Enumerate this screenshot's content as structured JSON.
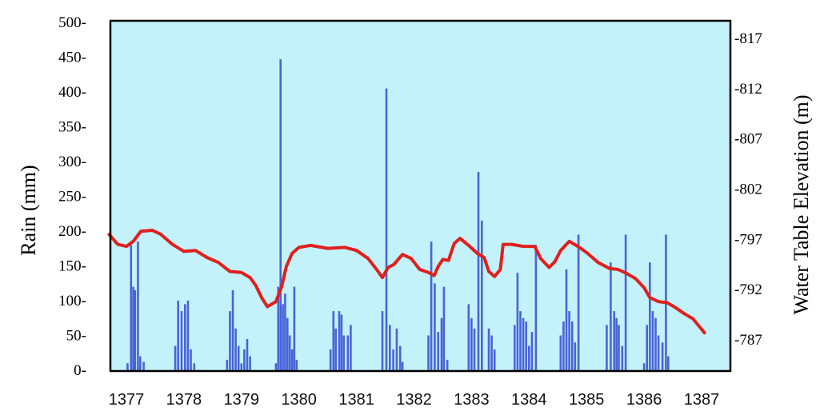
{
  "chart_data": {
    "type": "bar+line",
    "title": "",
    "ylabel_left": "Rain (mm)",
    "ylabel_right": "Water Table Elevation (m)",
    "left_ticks": [
      "500-",
      "450-",
      "400-",
      "350-",
      "300-",
      "250-",
      "200-",
      "150-",
      "100-",
      "50-",
      "0-"
    ],
    "right_ticks": [
      "-817",
      "-812",
      "-807",
      "-802",
      "-797",
      "-792",
      "-787"
    ],
    "x_ticks": [
      "1377",
      "1378",
      "1379",
      "1380",
      "1381",
      "1382",
      "1383",
      "1384",
      "1385",
      "1386",
      "1387"
    ],
    "ylim_left": [
      0,
      500
    ],
    "ylim_right": [
      785,
      819
    ],
    "xlim": [
      1376.7,
      1387.7
    ],
    "colors": {
      "plot_bg": "#c4f2fb",
      "bars": "#4a63d8",
      "line": "#e0201c"
    },
    "series": [
      {
        "kind": "bar",
        "axis": "left",
        "points": [
          [
            1377.02,
            10
          ],
          [
            1377.08,
            180
          ],
          [
            1377.12,
            120
          ],
          [
            1377.15,
            115
          ],
          [
            1377.2,
            185
          ],
          [
            1377.24,
            20
          ],
          [
            1377.3,
            12
          ],
          [
            1377.85,
            35
          ],
          [
            1377.9,
            100
          ],
          [
            1377.96,
            85
          ],
          [
            1378.02,
            95
          ],
          [
            1378.07,
            100
          ],
          [
            1378.12,
            30
          ],
          [
            1378.18,
            10
          ],
          [
            1378.75,
            15
          ],
          [
            1378.8,
            85
          ],
          [
            1378.85,
            115
          ],
          [
            1378.9,
            60
          ],
          [
            1378.95,
            35
          ],
          [
            1379.0,
            10
          ],
          [
            1379.05,
            30
          ],
          [
            1379.1,
            45
          ],
          [
            1379.15,
            20
          ],
          [
            1379.6,
            10
          ],
          [
            1379.64,
            120
          ],
          [
            1379.68,
            447
          ],
          [
            1379.72,
            95
          ],
          [
            1379.76,
            110
          ],
          [
            1379.8,
            75
          ],
          [
            1379.84,
            50
          ],
          [
            1379.88,
            30
          ],
          [
            1379.92,
            120
          ],
          [
            1379.96,
            15
          ],
          [
            1380.55,
            30
          ],
          [
            1380.6,
            85
          ],
          [
            1380.64,
            60
          ],
          [
            1380.7,
            85
          ],
          [
            1380.74,
            80
          ],
          [
            1380.78,
            50
          ],
          [
            1380.85,
            50
          ],
          [
            1380.9,
            65
          ],
          [
            1381.45,
            85
          ],
          [
            1381.52,
            405
          ],
          [
            1381.58,
            65
          ],
          [
            1381.64,
            30
          ],
          [
            1381.7,
            60
          ],
          [
            1381.76,
            35
          ],
          [
            1381.8,
            12
          ],
          [
            1382.25,
            50
          ],
          [
            1382.3,
            185
          ],
          [
            1382.36,
            125
          ],
          [
            1382.42,
            55
          ],
          [
            1382.48,
            75
          ],
          [
            1382.52,
            120
          ],
          [
            1382.58,
            15
          ],
          [
            1382.95,
            95
          ],
          [
            1383.0,
            75
          ],
          [
            1383.05,
            60
          ],
          [
            1383.12,
            285
          ],
          [
            1383.18,
            215
          ],
          [
            1383.3,
            60
          ],
          [
            1383.35,
            50
          ],
          [
            1383.4,
            30
          ],
          [
            1383.75,
            65
          ],
          [
            1383.8,
            140
          ],
          [
            1383.85,
            85
          ],
          [
            1383.9,
            75
          ],
          [
            1383.95,
            70
          ],
          [
            1384.0,
            35
          ],
          [
            1384.05,
            55
          ],
          [
            1384.12,
            180
          ],
          [
            1384.55,
            50
          ],
          [
            1384.6,
            70
          ],
          [
            1384.65,
            145
          ],
          [
            1384.7,
            85
          ],
          [
            1384.75,
            70
          ],
          [
            1384.8,
            40
          ],
          [
            1384.86,
            195
          ],
          [
            1385.35,
            65
          ],
          [
            1385.42,
            155
          ],
          [
            1385.48,
            85
          ],
          [
            1385.52,
            75
          ],
          [
            1385.56,
            65
          ],
          [
            1385.62,
            35
          ],
          [
            1385.68,
            195
          ],
          [
            1386.0,
            10
          ],
          [
            1386.05,
            65
          ],
          [
            1386.1,
            155
          ],
          [
            1386.15,
            85
          ],
          [
            1386.2,
            75
          ],
          [
            1386.25,
            50
          ],
          [
            1386.32,
            40
          ],
          [
            1386.38,
            195
          ],
          [
            1386.42,
            20
          ]
        ]
      },
      {
        "kind": "line",
        "axis": "right",
        "points": [
          [
            1376.7,
            797.5
          ],
          [
            1376.85,
            796.5
          ],
          [
            1377.0,
            796.3
          ],
          [
            1377.12,
            796.8
          ],
          [
            1377.25,
            797.8
          ],
          [
            1377.45,
            797.9
          ],
          [
            1377.6,
            797.5
          ],
          [
            1377.8,
            796.5
          ],
          [
            1378.0,
            795.8
          ],
          [
            1378.2,
            795.9
          ],
          [
            1378.4,
            795.2
          ],
          [
            1378.6,
            794.7
          ],
          [
            1378.8,
            793.8
          ],
          [
            1379.0,
            793.7
          ],
          [
            1379.15,
            793.2
          ],
          [
            1379.25,
            792.4
          ],
          [
            1379.35,
            791.2
          ],
          [
            1379.45,
            790.3
          ],
          [
            1379.6,
            790.8
          ],
          [
            1379.7,
            792.3
          ],
          [
            1379.78,
            794.3
          ],
          [
            1379.88,
            795.6
          ],
          [
            1380.0,
            796.2
          ],
          [
            1380.2,
            796.4
          ],
          [
            1380.5,
            796.1
          ],
          [
            1380.8,
            796.2
          ],
          [
            1381.0,
            795.9
          ],
          [
            1381.2,
            795.1
          ],
          [
            1381.35,
            794.0
          ],
          [
            1381.45,
            793.2
          ],
          [
            1381.55,
            794.2
          ],
          [
            1381.65,
            794.5
          ],
          [
            1381.8,
            795.5
          ],
          [
            1381.95,
            795.1
          ],
          [
            1382.1,
            794.0
          ],
          [
            1382.25,
            793.7
          ],
          [
            1382.35,
            793.4
          ],
          [
            1382.42,
            794.3
          ],
          [
            1382.5,
            795.0
          ],
          [
            1382.6,
            794.9
          ],
          [
            1382.7,
            796.6
          ],
          [
            1382.8,
            797.1
          ],
          [
            1382.95,
            796.4
          ],
          [
            1383.1,
            795.6
          ],
          [
            1383.22,
            795.2
          ],
          [
            1383.3,
            793.8
          ],
          [
            1383.4,
            793.3
          ],
          [
            1383.5,
            794.0
          ],
          [
            1383.55,
            796.5
          ],
          [
            1383.7,
            796.5
          ],
          [
            1383.9,
            796.3
          ],
          [
            1384.1,
            796.3
          ],
          [
            1384.2,
            795.1
          ],
          [
            1384.35,
            794.2
          ],
          [
            1384.45,
            794.8
          ],
          [
            1384.55,
            795.9
          ],
          [
            1384.7,
            796.8
          ],
          [
            1384.85,
            796.3
          ],
          [
            1385.0,
            795.7
          ],
          [
            1385.2,
            794.7
          ],
          [
            1385.4,
            794.1
          ],
          [
            1385.55,
            794.0
          ],
          [
            1385.7,
            793.6
          ],
          [
            1385.85,
            793.1
          ],
          [
            1386.0,
            792.2
          ],
          [
            1386.1,
            791.2
          ],
          [
            1386.25,
            790.8
          ],
          [
            1386.4,
            790.7
          ],
          [
            1386.55,
            790.2
          ],
          [
            1386.7,
            789.6
          ],
          [
            1386.85,
            789.1
          ],
          [
            1386.95,
            788.4
          ],
          [
            1387.05,
            787.7
          ]
        ]
      }
    ]
  }
}
